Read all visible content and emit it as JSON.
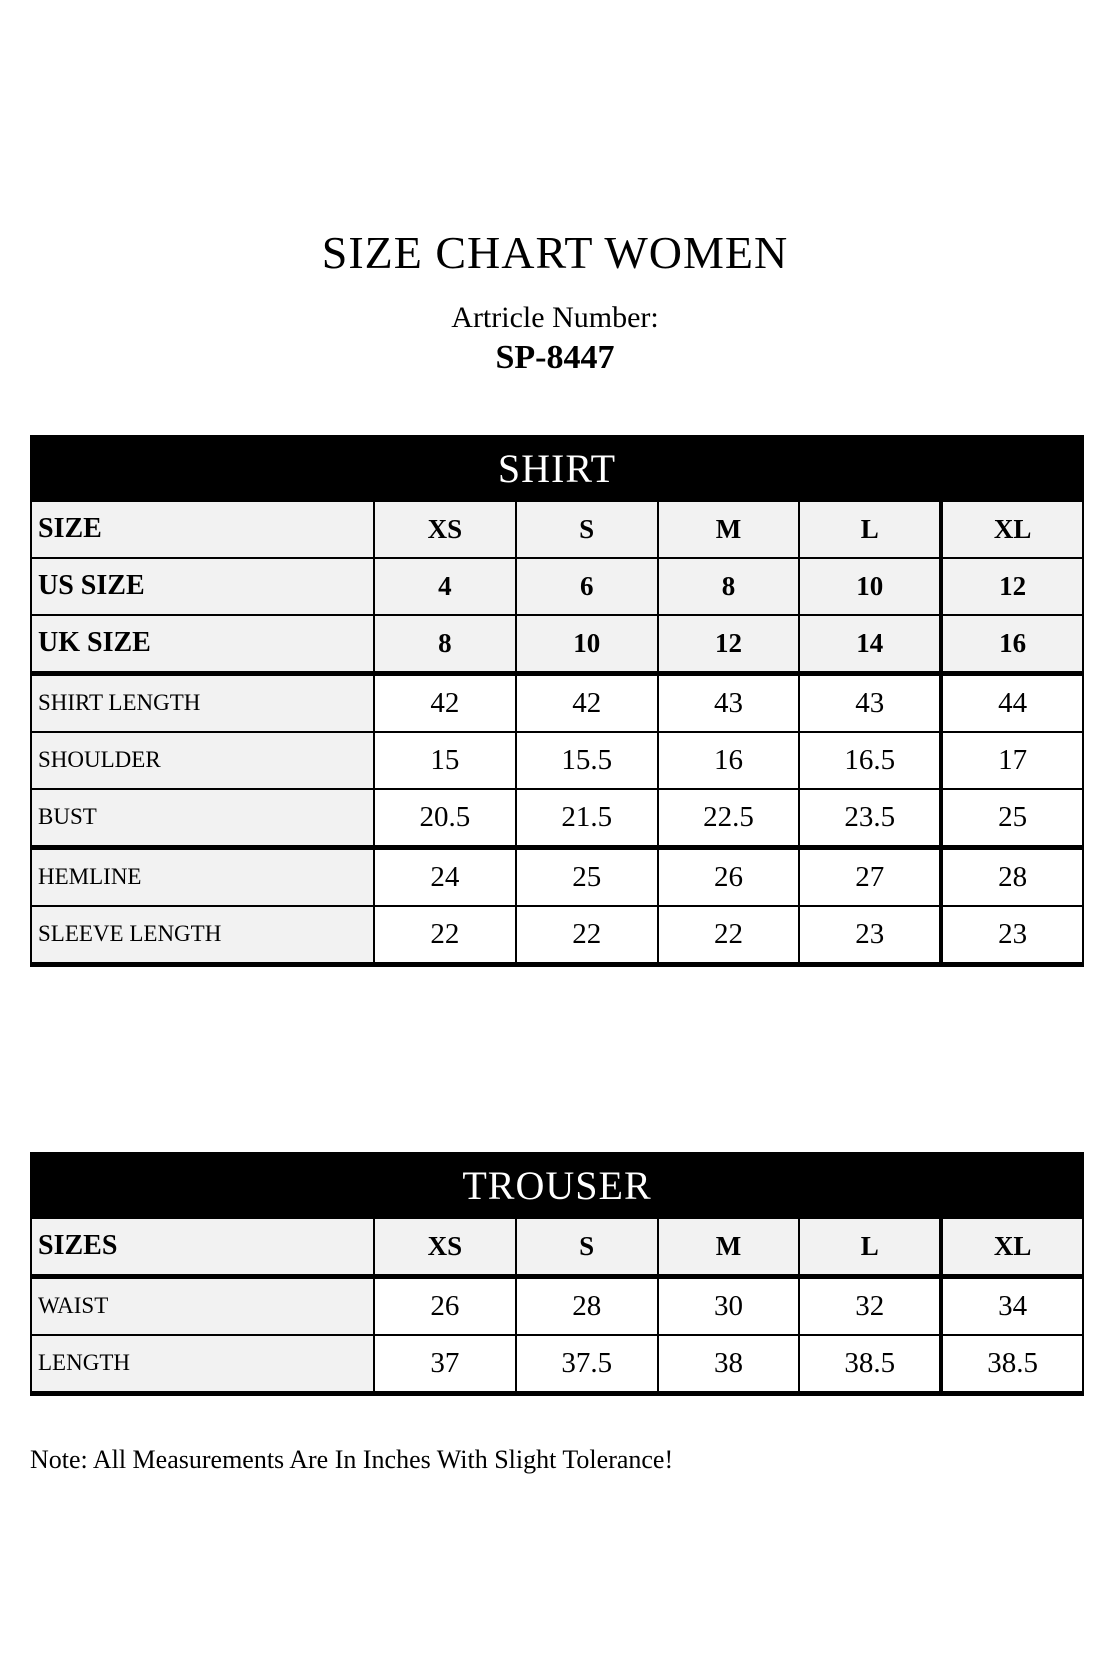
{
  "page": {
    "title": "SIZE CHART WOMEN",
    "article_label": "Artricle Number:",
    "article_number": "SP-8447",
    "note": "Note: All Measurements Are In Inches With Slight Tolerance!"
  },
  "colors": {
    "banner_bg": "#000000",
    "banner_text": "#ffffff",
    "label_cell_bg": "#f2f2f2",
    "data_cell_bg": "#ffffff",
    "border": "#000000",
    "page_bg": "#ffffff"
  },
  "shirt_table": {
    "title": "SHIRT",
    "rows": [
      {
        "label": "SIZE",
        "values": [
          "XS",
          "S",
          "M",
          "L",
          "XL"
        ]
      },
      {
        "label": "US SIZE",
        "values": [
          "4",
          "6",
          "8",
          "10",
          "12"
        ]
      },
      {
        "label": "UK SIZE",
        "values": [
          "8",
          "10",
          "12",
          "14",
          "16"
        ]
      },
      {
        "label": "SHIRT LENGTH",
        "values": [
          "42",
          "42",
          "43",
          "43",
          "44"
        ]
      },
      {
        "label": "SHOULDER",
        "values": [
          "15",
          "15.5",
          "16",
          "16.5",
          "17"
        ]
      },
      {
        "label": "BUST",
        "values": [
          "20.5",
          "21.5",
          "22.5",
          "23.5",
          "25"
        ]
      },
      {
        "label": "HEMLINE",
        "values": [
          "24",
          "25",
          "26",
          "27",
          "28"
        ]
      },
      {
        "label": "SLEEVE LENGTH",
        "values": [
          "22",
          "22",
          "22",
          "23",
          "23"
        ]
      }
    ]
  },
  "trouser_table": {
    "title": "TROUSER",
    "rows": [
      {
        "label": "SIZES",
        "values": [
          "XS",
          "S",
          "M",
          "L",
          "XL"
        ]
      },
      {
        "label": "WAIST",
        "values": [
          "26",
          "28",
          "30",
          "32",
          "34"
        ]
      },
      {
        "label": "LENGTH",
        "values": [
          "37",
          "37.5",
          "38",
          "38.5",
          "38.5"
        ]
      }
    ]
  }
}
